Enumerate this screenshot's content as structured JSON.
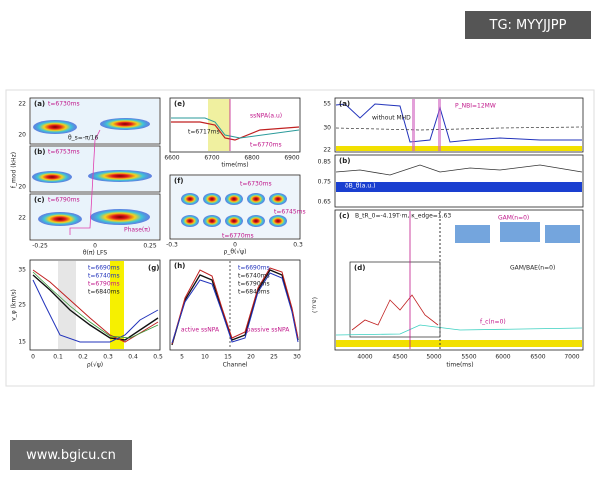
{
  "watermark": "TG: MYYJJPP",
  "website": "www.bgicu.cn",
  "left": {
    "panel_labels": [
      "(a)",
      "(b)",
      "(c)",
      "(g)"
    ],
    "times": [
      "t=6730ms",
      "t=6753ms",
      "t=6790ms"
    ],
    "annotations": [
      "θ_s=-π/16",
      "Phase(π)"
    ],
    "y_label": "f_mod (kHz)",
    "y_ticks": [
      "22",
      "20"
    ],
    "x_ticks": [
      "-0.25",
      "0",
      "0.25"
    ],
    "x_label": "θ(π)  LFS",
    "g_legend": [
      "t=6690ms",
      "t=6740ms",
      "t=6790ms",
      "t=6840ms"
    ],
    "g_y_label": "v_φ (km/s)",
    "g_y_ticks": [
      "35",
      "25",
      "15"
    ],
    "g_x_ticks": [
      "0",
      "0.1",
      "0.2",
      "0.3",
      "0.4",
      "0.5"
    ],
    "g_x_label": "ρ(√ψ)"
  },
  "middle": {
    "e_label": "(e)",
    "e_annotations": [
      "t=6717ms",
      "ssNPA(a.u)",
      "t=6770ms"
    ],
    "e_x_ticks": [
      "6600",
      "6700",
      "6800",
      "6900"
    ],
    "e_x_label": "time(ms)",
    "f_label": "(f)",
    "f_annotations": [
      "t=6730ms",
      "t=6745ms",
      "t=6770ms"
    ],
    "f_x_ticks": [
      "-0.3",
      "0",
      "0.3"
    ],
    "f_x_label": "ρ_θ(√ψ)",
    "h_label": "(h)",
    "h_legend": [
      "t=6690ms",
      "t=6740ms",
      "t=6790ms",
      "t=6840ms"
    ],
    "h_annotations": [
      "active ssNPA",
      "passive ssNPA"
    ],
    "h_y_label": "(a.u.)",
    "h_x_ticks": [
      "5",
      "10",
      "15",
      "20",
      "25",
      "30"
    ],
    "h_x_label": "Channel"
  },
  "right": {
    "a_label": "(a)",
    "b_label": "(b)",
    "c_label": "(c)",
    "d_label": "(d)",
    "a_annotations": [
      "without MHD",
      "P_NBI=12MW"
    ],
    "b_annotations": [
      "δB_θ(a.u.)"
    ],
    "c_annotations": [
      "B_tR_0=-4.19T·m, κ_edge=1.63",
      "GAM(n=0)",
      "GAM/BAE(n=0)",
      "f_c(n=0)"
    ],
    "a_y_ticks": [
      "55",
      "30",
      "22"
    ],
    "b_y_ticks": [
      "0.85",
      "0.75",
      "0.65"
    ],
    "x_ticks": [
      "4000",
      "4500",
      "5000",
      "5500",
      "6000",
      "6500",
      "7000"
    ],
    "x_label": "time(ms)"
  }
}
